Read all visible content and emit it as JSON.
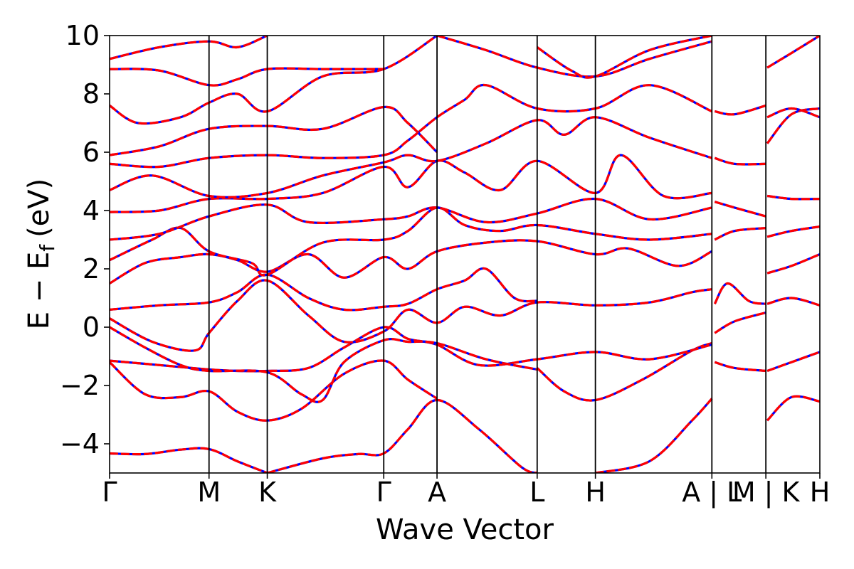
{
  "chart_data": {
    "type": "line",
    "title": "",
    "xlabel": "Wave Vector",
    "ylabel": "E − E",
    "ylabel_sub": "f",
    "ylabel_unit": "(eV)",
    "ylim": [
      -5,
      10
    ],
    "yticks": [
      {
        "value": 10,
        "label": "10"
      },
      {
        "value": 8,
        "label": "8"
      },
      {
        "value": 6,
        "label": "6"
      },
      {
        "value": 4,
        "label": "4"
      },
      {
        "value": 2,
        "label": "2"
      },
      {
        "value": 0,
        "label": "0"
      },
      {
        "value": -2,
        "label": "−2"
      },
      {
        "value": -4,
        "label": "−4"
      }
    ],
    "xlim": [
      0,
      1
    ],
    "kpoints": [
      {
        "x": 0.0,
        "label": "Γ"
      },
      {
        "x": 0.14,
        "label": "M"
      },
      {
        "x": 0.222,
        "label": "K"
      },
      {
        "x": 0.386,
        "label": "Γ"
      },
      {
        "x": 0.461,
        "label": "A"
      },
      {
        "x": 0.602,
        "label": "L"
      },
      {
        "x": 0.684,
        "label": "H"
      },
      {
        "x": 0.848,
        "label": "A | L"
      },
      {
        "x": 0.924,
        "label": "M | K"
      },
      {
        "x": 1.0,
        "label": "H"
      }
    ],
    "path_breaks": [
      0.848,
      0.924
    ],
    "grid": false,
    "legend": "none",
    "series_styles": [
      {
        "color": "#0000ff",
        "style": "solid"
      },
      {
        "color": "#ff0000",
        "style": "dashed"
      }
    ],
    "bands": [
      [
        [
          0.0,
          -4.33
        ],
        [
          0.05,
          -4.35
        ],
        [
          0.1,
          -4.2
        ],
        [
          0.14,
          -4.18
        ],
        [
          0.18,
          -4.6
        ],
        [
          0.222,
          -5.0
        ]
      ],
      [
        [
          0.222,
          -5.0
        ],
        [
          0.3,
          -4.5
        ],
        [
          0.35,
          -4.35
        ],
        [
          0.386,
          -4.33
        ],
        [
          0.42,
          -3.5
        ],
        [
          0.461,
          -2.5
        ],
        [
          0.52,
          -3.5
        ],
        [
          0.58,
          -4.8
        ],
        [
          0.602,
          -5.0
        ]
      ],
      [
        [
          0.684,
          -5.0
        ],
        [
          0.76,
          -4.6
        ],
        [
          0.82,
          -3.2
        ],
        [
          0.848,
          -2.45
        ]
      ],
      [
        [
          0.0,
          -1.2
        ],
        [
          0.05,
          -2.3
        ],
        [
          0.1,
          -2.4
        ],
        [
          0.14,
          -2.2
        ],
        [
          0.18,
          -2.9
        ],
        [
          0.222,
          -3.2
        ],
        [
          0.27,
          -2.8
        ],
        [
          0.33,
          -1.6
        ],
        [
          0.386,
          -1.15
        ],
        [
          0.42,
          -1.8
        ],
        [
          0.461,
          -2.45
        ]
      ],
      [
        [
          0.602,
          -1.4
        ],
        [
          0.64,
          -2.2
        ],
        [
          0.684,
          -2.5
        ],
        [
          0.75,
          -1.8
        ],
        [
          0.82,
          -0.8
        ],
        [
          0.848,
          -0.55
        ]
      ],
      [
        [
          0.0,
          -1.15
        ],
        [
          0.07,
          -1.3
        ],
        [
          0.14,
          -1.45
        ],
        [
          0.18,
          -1.5
        ],
        [
          0.222,
          -1.5
        ],
        [
          0.28,
          -1.4
        ],
        [
          0.33,
          -0.7
        ],
        [
          0.386,
          0.0
        ],
        [
          0.42,
          -0.4
        ],
        [
          0.461,
          -0.6
        ],
        [
          0.52,
          -1.3
        ],
        [
          0.602,
          -1.1
        ],
        [
          0.684,
          -0.85
        ],
        [
          0.76,
          -1.1
        ],
        [
          0.848,
          -0.6
        ]
      ],
      [
        [
          0.0,
          0.0
        ],
        [
          0.05,
          -0.7
        ],
        [
          0.1,
          -1.3
        ],
        [
          0.14,
          -1.5
        ],
        [
          0.222,
          -1.55
        ],
        [
          0.27,
          -2.3
        ],
        [
          0.3,
          -2.5
        ],
        [
          0.33,
          -1.2
        ],
        [
          0.386,
          -0.45
        ],
        [
          0.42,
          -0.5
        ],
        [
          0.461,
          -0.55
        ],
        [
          0.53,
          -1.1
        ],
        [
          0.602,
          -1.45
        ]
      ],
      [
        [
          0.0,
          0.3
        ],
        [
          0.06,
          -0.5
        ],
        [
          0.12,
          -0.8
        ],
        [
          0.14,
          -0.2
        ],
        [
          0.18,
          0.9
        ],
        [
          0.222,
          1.6
        ],
        [
          0.28,
          0.4
        ],
        [
          0.33,
          -0.5
        ],
        [
          0.386,
          -0.15
        ],
        [
          0.42,
          0.6
        ],
        [
          0.461,
          0.15
        ],
        [
          0.5,
          0.7
        ],
        [
          0.55,
          0.4
        ],
        [
          0.602,
          0.85
        ],
        [
          0.684,
          0.75
        ],
        [
          0.76,
          0.85
        ],
        [
          0.82,
          1.2
        ],
        [
          0.848,
          1.3
        ]
      ],
      [
        [
          0.0,
          0.6
        ],
        [
          0.07,
          0.75
        ],
        [
          0.14,
          0.85
        ],
        [
          0.18,
          1.2
        ],
        [
          0.222,
          1.8
        ],
        [
          0.28,
          1.0
        ],
        [
          0.33,
          0.6
        ],
        [
          0.386,
          0.7
        ],
        [
          0.42,
          0.8
        ],
        [
          0.461,
          1.3
        ],
        [
          0.5,
          1.6
        ],
        [
          0.53,
          2.0
        ],
        [
          0.57,
          1.0
        ],
        [
          0.602,
          0.9
        ]
      ],
      [
        [
          0.0,
          1.5
        ],
        [
          0.05,
          2.2
        ],
        [
          0.1,
          2.4
        ],
        [
          0.14,
          2.5
        ],
        [
          0.18,
          2.3
        ],
        [
          0.222,
          1.9
        ],
        [
          0.28,
          2.5
        ],
        [
          0.33,
          1.7
        ],
        [
          0.386,
          2.4
        ],
        [
          0.42,
          2.0
        ],
        [
          0.461,
          2.6
        ],
        [
          0.53,
          2.9
        ],
        [
          0.602,
          2.95
        ],
        [
          0.684,
          2.5
        ],
        [
          0.73,
          2.7
        ],
        [
          0.8,
          2.1
        ],
        [
          0.848,
          2.6
        ]
      ],
      [
        [
          0.0,
          2.3
        ],
        [
          0.06,
          3.0
        ],
        [
          0.1,
          3.4
        ],
        [
          0.14,
          2.6
        ],
        [
          0.2,
          2.2
        ],
        [
          0.222,
          1.8
        ],
        [
          0.3,
          2.9
        ],
        [
          0.386,
          3.0
        ],
        [
          0.42,
          3.3
        ],
        [
          0.461,
          4.1
        ],
        [
          0.5,
          3.5
        ],
        [
          0.55,
          3.3
        ],
        [
          0.602,
          3.5
        ],
        [
          0.684,
          3.2
        ],
        [
          0.76,
          3.0
        ],
        [
          0.848,
          3.2
        ]
      ],
      [
        [
          0.0,
          3.0
        ],
        [
          0.07,
          3.2
        ],
        [
          0.14,
          3.8
        ],
        [
          0.222,
          4.2
        ],
        [
          0.28,
          3.6
        ],
        [
          0.386,
          3.7
        ],
        [
          0.42,
          3.8
        ],
        [
          0.461,
          4.1
        ],
        [
          0.53,
          3.6
        ],
        [
          0.602,
          3.9
        ],
        [
          0.684,
          4.4
        ],
        [
          0.76,
          3.7
        ],
        [
          0.848,
          4.1
        ]
      ],
      [
        [
          0.0,
          3.95
        ],
        [
          0.07,
          4.0
        ],
        [
          0.14,
          4.4
        ],
        [
          0.222,
          4.4
        ],
        [
          0.3,
          4.6
        ],
        [
          0.386,
          5.5
        ],
        [
          0.42,
          4.8
        ],
        [
          0.461,
          5.7
        ],
        [
          0.5,
          5.3
        ],
        [
          0.55,
          4.7
        ],
        [
          0.602,
          5.7
        ],
        [
          0.684,
          4.6
        ],
        [
          0.72,
          5.9
        ],
        [
          0.78,
          4.5
        ],
        [
          0.848,
          4.6
        ]
      ],
      [
        [
          0.0,
          4.7
        ],
        [
          0.06,
          5.2
        ],
        [
          0.14,
          4.5
        ],
        [
          0.222,
          4.6
        ],
        [
          0.3,
          5.2
        ],
        [
          0.386,
          5.65
        ],
        [
          0.42,
          5.9
        ],
        [
          0.461,
          5.7
        ],
        [
          0.53,
          6.3
        ],
        [
          0.602,
          7.1
        ],
        [
          0.64,
          6.6
        ],
        [
          0.684,
          7.2
        ],
        [
          0.76,
          6.5
        ],
        [
          0.848,
          5.8
        ]
      ],
      [
        [
          0.0,
          5.6
        ],
        [
          0.07,
          5.5
        ],
        [
          0.14,
          5.8
        ],
        [
          0.222,
          5.9
        ],
        [
          0.3,
          5.8
        ],
        [
          0.386,
          5.9
        ],
        [
          0.42,
          6.4
        ],
        [
          0.461,
          7.2
        ],
        [
          0.5,
          7.8
        ],
        [
          0.53,
          8.3
        ],
        [
          0.602,
          7.5
        ],
        [
          0.684,
          7.5
        ],
        [
          0.76,
          8.3
        ],
        [
          0.848,
          7.4
        ]
      ],
      [
        [
          0.0,
          5.9
        ],
        [
          0.07,
          6.2
        ],
        [
          0.14,
          6.8
        ],
        [
          0.222,
          6.9
        ],
        [
          0.3,
          6.8
        ],
        [
          0.386,
          7.55
        ],
        [
          0.42,
          7.0
        ],
        [
          0.461,
          6.0
        ]
      ],
      [
        [
          0.0,
          7.6
        ],
        [
          0.04,
          7.0
        ],
        [
          0.1,
          7.2
        ],
        [
          0.14,
          7.7
        ],
        [
          0.18,
          8.0
        ],
        [
          0.222,
          7.4
        ],
        [
          0.3,
          8.6
        ],
        [
          0.386,
          8.85
        ],
        [
          0.461,
          10.0
        ]
      ],
      [
        [
          0.0,
          8.85
        ],
        [
          0.07,
          8.8
        ],
        [
          0.14,
          8.3
        ],
        [
          0.18,
          8.5
        ],
        [
          0.222,
          8.85
        ],
        [
          0.3,
          8.85
        ],
        [
          0.386,
          8.85
        ]
      ],
      [
        [
          0.0,
          9.2
        ],
        [
          0.07,
          9.6
        ],
        [
          0.14,
          9.8
        ],
        [
          0.18,
          9.6
        ],
        [
          0.222,
          10.0
        ]
      ],
      [
        [
          0.461,
          10.0
        ],
        [
          0.53,
          9.5
        ],
        [
          0.602,
          8.9
        ],
        [
          0.684,
          8.6
        ],
        [
          0.76,
          9.2
        ],
        [
          0.848,
          9.8
        ]
      ],
      [
        [
          0.602,
          9.6
        ],
        [
          0.65,
          8.8
        ],
        [
          0.684,
          8.6
        ],
        [
          0.76,
          9.5
        ],
        [
          0.848,
          10.0
        ]
      ],
      [
        [
          0.852,
          0.8
        ],
        [
          0.87,
          1.5
        ],
        [
          0.9,
          0.9
        ],
        [
          0.924,
          0.8
        ]
      ],
      [
        [
          0.852,
          3.0
        ],
        [
          0.88,
          3.3
        ],
        [
          0.924,
          3.4
        ]
      ],
      [
        [
          0.852,
          4.3
        ],
        [
          0.88,
          4.1
        ],
        [
          0.924,
          3.8
        ]
      ],
      [
        [
          0.852,
          5.8
        ],
        [
          0.88,
          5.6
        ],
        [
          0.924,
          5.6
        ]
      ],
      [
        [
          0.852,
          7.4
        ],
        [
          0.88,
          7.3
        ],
        [
          0.924,
          7.6
        ]
      ],
      [
        [
          0.852,
          -1.2
        ],
        [
          0.88,
          -1.4
        ],
        [
          0.924,
          -1.5
        ]
      ],
      [
        [
          0.852,
          -0.2
        ],
        [
          0.88,
          0.2
        ],
        [
          0.924,
          0.5
        ]
      ],
      [
        [
          0.926,
          -3.2
        ],
        [
          0.96,
          -2.4
        ],
        [
          1.0,
          -2.55
        ]
      ],
      [
        [
          0.926,
          -1.5
        ],
        [
          0.96,
          -1.2
        ],
        [
          1.0,
          -0.85
        ]
      ],
      [
        [
          0.926,
          0.8
        ],
        [
          0.96,
          1.0
        ],
        [
          1.0,
          0.75
        ]
      ],
      [
        [
          0.926,
          1.85
        ],
        [
          0.96,
          2.1
        ],
        [
          1.0,
          2.5
        ]
      ],
      [
        [
          0.926,
          3.1
        ],
        [
          0.96,
          3.3
        ],
        [
          1.0,
          3.45
        ]
      ],
      [
        [
          0.926,
          4.5
        ],
        [
          0.96,
          4.4
        ],
        [
          1.0,
          4.4
        ]
      ],
      [
        [
          0.926,
          6.3
        ],
        [
          0.96,
          7.3
        ],
        [
          1.0,
          7.5
        ]
      ],
      [
        [
          0.926,
          7.2
        ],
        [
          0.96,
          7.5
        ],
        [
          1.0,
          7.2
        ]
      ],
      [
        [
          0.926,
          8.9
        ],
        [
          0.96,
          9.4
        ],
        [
          1.0,
          10.0
        ]
      ]
    ]
  }
}
